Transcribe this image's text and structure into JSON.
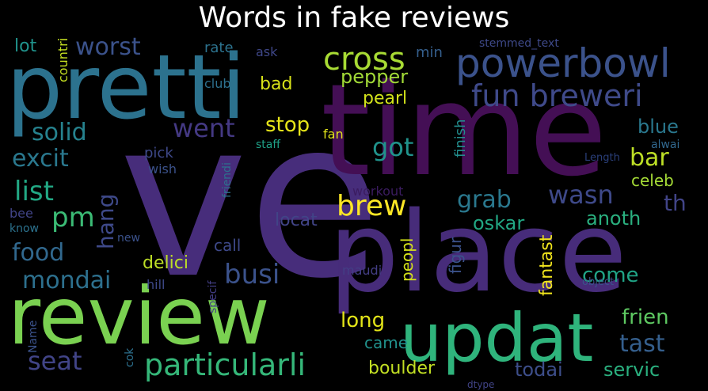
{
  "title": "Words in fake reviews",
  "words": [
    {
      "text": "ve",
      "color": "#472d7b"
    },
    {
      "text": "time",
      "color": "#440f55"
    },
    {
      "text": "place",
      "color": "#472c7a"
    },
    {
      "text": "pretti",
      "color": "#2c728e"
    },
    {
      "text": "review",
      "color": "#7ad151"
    },
    {
      "text": "updat",
      "color": "#2fb47c"
    },
    {
      "text": "powerbowl",
      "color": "#3b528b"
    },
    {
      "text": "fun breweri",
      "color": "#3f4a8a"
    },
    {
      "text": "particularli",
      "color": "#35b779"
    },
    {
      "text": "cross",
      "color": "#a8db34"
    },
    {
      "text": "worst",
      "color": "#3b528b"
    },
    {
      "text": "went",
      "color": "#443983"
    },
    {
      "text": "solid",
      "color": "#26828e"
    },
    {
      "text": "excit",
      "color": "#2a788e"
    },
    {
      "text": "list",
      "color": "#22a884"
    },
    {
      "text": "pm",
      "color": "#3bbb75"
    },
    {
      "text": "hang",
      "color": "#3e4989"
    },
    {
      "text": "food",
      "color": "#31688e"
    },
    {
      "text": "mondai",
      "color": "#2d708e"
    },
    {
      "text": "seat",
      "color": "#414487"
    },
    {
      "text": "busi",
      "color": "#3b528b"
    },
    {
      "text": "brew",
      "color": "#fde725"
    },
    {
      "text": "grab",
      "color": "#2a788e"
    },
    {
      "text": "wasn",
      "color": "#3e4989"
    },
    {
      "text": "got",
      "color": "#20938c"
    },
    {
      "text": "bar",
      "color": "#bddf26"
    },
    {
      "text": "th",
      "color": "#414487"
    },
    {
      "text": "blue",
      "color": "#2a788e"
    },
    {
      "text": "stop",
      "color": "#e5e419"
    },
    {
      "text": "bad",
      "color": "#d8e219"
    },
    {
      "text": "pepper",
      "color": "#a2da37"
    },
    {
      "text": "pearl",
      "color": "#d2e21b"
    },
    {
      "text": "long",
      "color": "#e2e418"
    },
    {
      "text": "came",
      "color": "#21918c"
    },
    {
      "text": "boulder",
      "color": "#c2df23"
    },
    {
      "text": "todai",
      "color": "#3d4e8a"
    },
    {
      "text": "servic",
      "color": "#2ab07f"
    },
    {
      "text": "tast",
      "color": "#355f8d"
    },
    {
      "text": "frien",
      "color": "#5ec962"
    },
    {
      "text": "come",
      "color": "#20a486"
    },
    {
      "text": "oskar",
      "color": "#22a884"
    },
    {
      "text": "anoth",
      "color": "#2ab07f"
    },
    {
      "text": "fantast",
      "color": "#f1e51d"
    },
    {
      "text": "peopl",
      "color": "#d5e21a"
    },
    {
      "text": "figur",
      "color": "#3b528b"
    },
    {
      "text": "delici",
      "color": "#bddf26"
    },
    {
      "text": "call",
      "color": "#3e4989"
    },
    {
      "text": "locat",
      "color": "#414487"
    },
    {
      "text": "finish",
      "color": "#228d8d"
    },
    {
      "text": "celeb",
      "color": "#a5db36"
    },
    {
      "text": "lot",
      "color": "#20938c"
    },
    {
      "text": "countri",
      "color": "#c5e021"
    },
    {
      "text": "rate",
      "color": "#2c728e"
    },
    {
      "text": "ask",
      "color": "#3f4788"
    },
    {
      "text": "min",
      "color": "#355f8d"
    },
    {
      "text": "club",
      "color": "#2d708e"
    },
    {
      "text": "stemmed_text",
      "color": "#3e4989"
    },
    {
      "text": "staff",
      "color": "#1fa188"
    },
    {
      "text": "fan",
      "color": "#e0e31a"
    },
    {
      "text": "pick",
      "color": "#3e4989"
    },
    {
      "text": "wish",
      "color": "#3b528b"
    },
    {
      "text": "friendi",
      "color": "#2d708e"
    },
    {
      "text": "workout",
      "color": "#3b1c60"
    },
    {
      "text": "maudi",
      "color": "#433e85"
    },
    {
      "text": "alwai",
      "color": "#31688e"
    },
    {
      "text": "Length",
      "color": "#2a3f7a"
    },
    {
      "text": "bee",
      "color": "#414487"
    },
    {
      "text": "know",
      "color": "#2c728e"
    },
    {
      "text": "new",
      "color": "#3b528b"
    },
    {
      "text": "hill",
      "color": "#3e4989"
    },
    {
      "text": "specif",
      "color": "#433e85"
    },
    {
      "text": "Name",
      "color": "#3b528b"
    },
    {
      "text": "cok",
      "color": "#2d708e"
    },
    {
      "text": "object",
      "color": "#3b528b"
    },
    {
      "text": "dtype",
      "color": "#414487"
    }
  ]
}
